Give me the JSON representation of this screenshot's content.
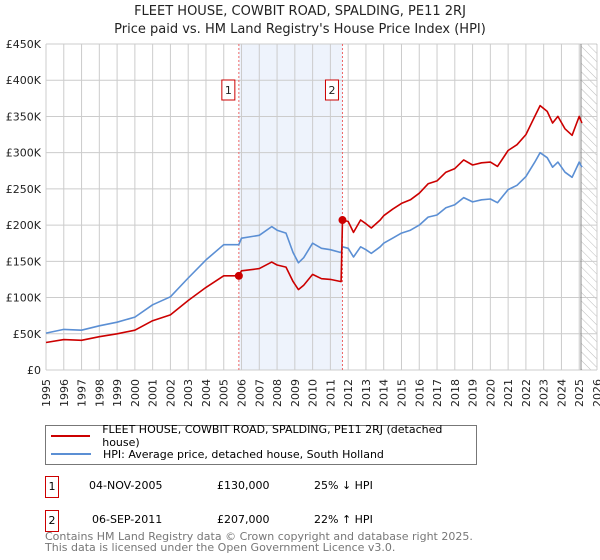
{
  "title": "FLEET HOUSE, COWBIT ROAD, SPALDING, PE11 2RJ",
  "subtitle": "Price paid vs. HM Land Registry's House Price Index (HPI)",
  "legend": {
    "property": "FLEET HOUSE, COWBIT ROAD, SPALDING, PE11 2RJ (detached house)",
    "hpi": "HPI: Average price, detached house, South Holland"
  },
  "sales": [
    {
      "num": "1",
      "date": "04-NOV-2005",
      "price": "£130,000",
      "hpi": "25% ↓ HPI"
    },
    {
      "num": "2",
      "date": "06-SEP-2011",
      "price": "£207,000",
      "hpi": "22% ↑ HPI"
    }
  ],
  "footer": {
    "line1": "Contains HM Land Registry data © Crown copyright and database right 2025.",
    "line2": "This data is licensed under the Open Government Licence v3.0."
  },
  "colors": {
    "property": "#cc0000",
    "hpi": "#5b8fd4",
    "shade": "#eef3fc"
  },
  "chart_data": {
    "type": "line",
    "xlim": [
      1995,
      2026
    ],
    "ylim": [
      0,
      450000
    ],
    "yticks": [
      0,
      50000,
      100000,
      150000,
      200000,
      250000,
      300000,
      350000,
      400000,
      450000
    ],
    "ytick_labels": [
      "£0",
      "£50K",
      "£100K",
      "£150K",
      "£200K",
      "£250K",
      "£300K",
      "£350K",
      "£400K",
      "£450K"
    ],
    "xticks": [
      "1995",
      "1996",
      "1997",
      "1998",
      "1999",
      "2000",
      "2001",
      "2002",
      "2003",
      "2004",
      "2005",
      "2006",
      "2007",
      "2008",
      "2009",
      "2010",
      "2011",
      "2012",
      "2013",
      "2014",
      "2015",
      "2016",
      "2017",
      "2018",
      "2019",
      "2020",
      "2021",
      "2022",
      "2023",
      "2024",
      "2025",
      "2026"
    ],
    "shaded_period": [
      2005.85,
      2011.68
    ],
    "forecast_hatch_from": 2025.1,
    "markers": [
      {
        "label": "1",
        "x": 2005.85,
        "y": 130000
      },
      {
        "label": "2",
        "x": 2011.68,
        "y": 207000
      }
    ],
    "series": [
      {
        "name": "property",
        "x": [
          1995,
          1996,
          1997,
          1998,
          1999,
          2000,
          2001,
          2002,
          2003,
          2004,
          2005,
          2005.85,
          2006,
          2007,
          2007.7,
          2008,
          2008.5,
          2008.9,
          2009.2,
          2009.5,
          2010,
          2010.5,
          2011,
          2011.6,
          2011.68,
          2012,
          2012.3,
          2012.7,
          2013,
          2013.3,
          2013.8,
          2014,
          2014.5,
          2015,
          2015.5,
          2016,
          2016.5,
          2017,
          2017.5,
          2018,
          2018.5,
          2019,
          2019.5,
          2020,
          2020.4,
          2020.7,
          2021,
          2021.5,
          2022,
          2022.5,
          2022.8,
          2023.2,
          2023.5,
          2023.8,
          2024.2,
          2024.6,
          2025.0,
          2025.15
        ],
        "values": [
          38000,
          42000,
          41000,
          46000,
          50000,
          55000,
          68000,
          76000,
          96000,
          114000,
          130000,
          130000,
          137000,
          140000,
          149000,
          145000,
          142000,
          122000,
          111000,
          117000,
          132000,
          126000,
          125000,
          122000,
          207000,
          205000,
          190000,
          207000,
          202000,
          196000,
          207000,
          213000,
          222000,
          230000,
          235000,
          244000,
          257000,
          261000,
          273000,
          278000,
          290000,
          283000,
          286000,
          287000,
          281000,
          292000,
          303000,
          311000,
          325000,
          350000,
          365000,
          357000,
          341000,
          350000,
          333000,
          324000,
          350000,
          341000
        ]
      },
      {
        "name": "hpi",
        "x": [
          1995,
          1996,
          1997,
          1998,
          1999,
          2000,
          2001,
          2002,
          2003,
          2004,
          2005,
          2005.85,
          2006,
          2007,
          2007.7,
          2008,
          2008.5,
          2008.9,
          2009.2,
          2009.5,
          2010,
          2010.5,
          2011,
          2011.6,
          2011.68,
          2012,
          2012.3,
          2012.7,
          2013,
          2013.3,
          2013.8,
          2014,
          2014.5,
          2015,
          2015.5,
          2016,
          2016.5,
          2017,
          2017.5,
          2018,
          2018.5,
          2019,
          2019.5,
          2020,
          2020.4,
          2020.7,
          2021,
          2021.5,
          2022,
          2022.5,
          2022.8,
          2023.2,
          2023.5,
          2023.8,
          2024.2,
          2024.6,
          2025.0,
          2025.15
        ],
        "values": [
          51000,
          56000,
          55000,
          61000,
          66000,
          73000,
          90000,
          101000,
          127000,
          152000,
          173000,
          173000,
          182000,
          186000,
          198000,
          193000,
          189000,
          162000,
          148000,
          155000,
          175000,
          168000,
          166000,
          162000,
          170000,
          168000,
          156000,
          170000,
          166000,
          161000,
          170000,
          175000,
          182000,
          189000,
          193000,
          200000,
          211000,
          214000,
          224000,
          228000,
          238000,
          232000,
          235000,
          236000,
          231000,
          240000,
          249000,
          255000,
          267000,
          287000,
          300000,
          293000,
          280000,
          287000,
          273000,
          266000,
          287000,
          280000
        ]
      }
    ]
  }
}
